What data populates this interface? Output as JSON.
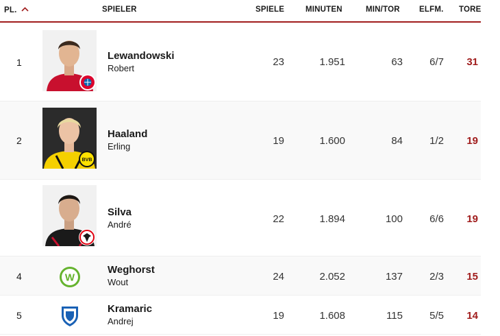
{
  "header": {
    "rank": "PL.",
    "player": "SPIELER",
    "games": "SPIELE",
    "minutes": "MINUTEN",
    "min_per_goal": "MIN/TOR",
    "penalties": "ELFM.",
    "goals": "TORE"
  },
  "colors": {
    "accent": "#a01c1c"
  },
  "rows": [
    {
      "rank": "1",
      "last": "Lewandowski",
      "first": "Robert",
      "games": "23",
      "minutes": "1.951",
      "min_per_goal": "63",
      "penalties": "6/7",
      "goals": "31",
      "club_icon": "fc-bayern-crest-icon"
    },
    {
      "rank": "2",
      "last": "Haaland",
      "first": "Erling",
      "games": "19",
      "minutes": "1.600",
      "min_per_goal": "84",
      "penalties": "1/2",
      "goals": "19",
      "club_icon": "bvb-crest-icon"
    },
    {
      "rank": "",
      "last": "Silva",
      "first": "André",
      "games": "22",
      "minutes": "1.894",
      "min_per_goal": "100",
      "penalties": "6/6",
      "goals": "19",
      "club_icon": "eintracht-frankfurt-crest-icon"
    },
    {
      "rank": "4",
      "last": "Weghorst",
      "first": "Wout",
      "games": "24",
      "minutes": "2.052",
      "min_per_goal": "137",
      "penalties": "2/3",
      "goals": "15",
      "club_icon": "vfl-wolfsburg-crest-icon"
    },
    {
      "rank": "5",
      "last": "Kramaric",
      "first": "Andrej",
      "games": "19",
      "minutes": "1.608",
      "min_per_goal": "115",
      "penalties": "5/5",
      "goals": "14",
      "club_icon": "tsg-hoffenheim-crest-icon"
    }
  ]
}
